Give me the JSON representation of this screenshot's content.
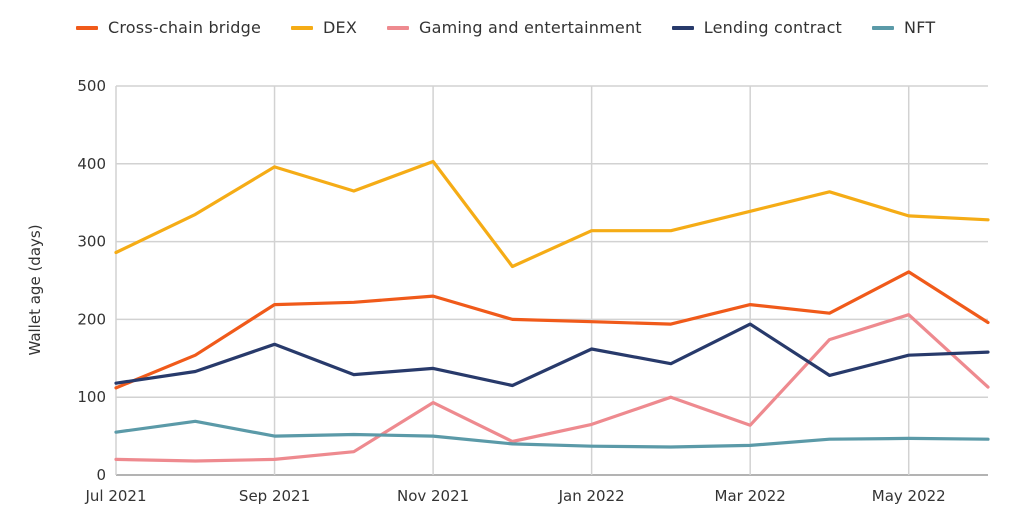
{
  "chart_data": {
    "type": "line",
    "title": "",
    "xlabel": "",
    "ylabel": "Wallet age (days)",
    "ylim": [
      0,
      500
    ],
    "yticks": [
      "0",
      "100",
      "200",
      "300",
      "400",
      "500"
    ],
    "x": [
      "2021-07",
      "2021-08",
      "2021-09",
      "2021-10",
      "2021-11",
      "2021-12",
      "2022-01",
      "2022-02",
      "2022-03",
      "2022-04",
      "2022-05",
      "2022-06"
    ],
    "xticks": [
      {
        "x": "2021-07",
        "label": "Jul 2021"
      },
      {
        "x": "2021-09",
        "label": "Sep 2021"
      },
      {
        "x": "2021-11",
        "label": "Nov 2021"
      },
      {
        "x": "2022-01",
        "label": "Jan 2022"
      },
      {
        "x": "2022-03",
        "label": "Mar 2022"
      },
      {
        "x": "2022-05",
        "label": "May 2022"
      }
    ],
    "grid": true,
    "legend_position": "top",
    "series": [
      {
        "name": "Cross-chain bridge",
        "color": "#f05a1a",
        "values": [
          112,
          154,
          219,
          222,
          230,
          200,
          197,
          194,
          219,
          208,
          261,
          196
        ]
      },
      {
        "name": "DEX",
        "color": "#f5ac16",
        "values": [
          286,
          335,
          396,
          365,
          403,
          268,
          314,
          314,
          339,
          364,
          333,
          328
        ]
      },
      {
        "name": "Gaming and entertainment",
        "color": "#ee8a8f",
        "values": [
          20,
          18,
          20,
          30,
          93,
          43,
          65,
          100,
          64,
          174,
          206,
          113
        ]
      },
      {
        "name": "Lending contract",
        "color": "#283a6b",
        "values": [
          118,
          133,
          168,
          129,
          137,
          115,
          162,
          143,
          194,
          128,
          154,
          158
        ]
      },
      {
        "name": "NFT",
        "color": "#5b9aa8",
        "values": [
          55,
          69,
          50,
          52,
          50,
          40,
          37,
          36,
          38,
          46,
          47,
          46
        ]
      }
    ]
  }
}
